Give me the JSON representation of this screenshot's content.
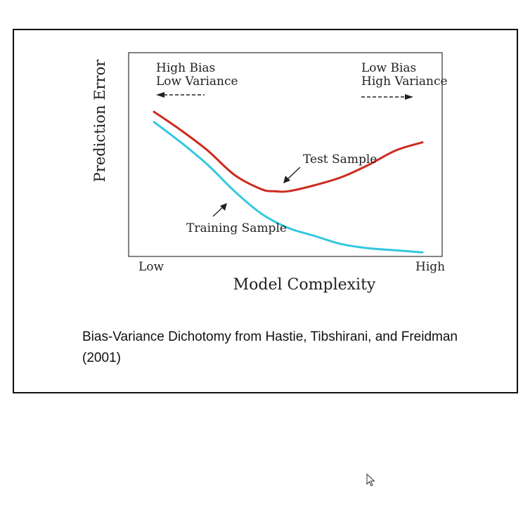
{
  "chart_data": {
    "type": "line",
    "xlabel": "Model Complexity",
    "ylabel": "Prediction Error",
    "x_tick_labels": [
      "Low",
      "High"
    ],
    "xlim": [
      0,
      1
    ],
    "ylim": [
      0,
      1
    ],
    "grid": false,
    "legend": "none",
    "annotations": {
      "left_line1": "High Bias",
      "left_line2": "Low Variance",
      "right_line1": "Low Bias",
      "right_line2": "High Variance"
    },
    "series": [
      {
        "name": "Test Sample",
        "color": "#cc2b1f",
        "x": [
          0.0,
          0.1,
          0.2,
          0.3,
          0.4,
          0.45,
          0.5,
          0.6,
          0.7,
          0.8,
          0.9,
          1.0
        ],
        "y": [
          0.71,
          0.62,
          0.52,
          0.4,
          0.33,
          0.32,
          0.32,
          0.35,
          0.39,
          0.45,
          0.52,
          0.56
        ]
      },
      {
        "name": "Training Sample",
        "color": "#33c8df",
        "x": [
          0.0,
          0.1,
          0.2,
          0.3,
          0.4,
          0.5,
          0.6,
          0.7,
          0.8,
          0.9,
          1.0
        ],
        "y": [
          0.66,
          0.56,
          0.45,
          0.32,
          0.21,
          0.14,
          0.1,
          0.06,
          0.04,
          0.03,
          0.02
        ]
      }
    ]
  },
  "caption": "Bias-Variance Dichotomy from Hastie, Tibshirani, and Freidman (2001)",
  "cursor_icon": "mouse-pointer-icon"
}
